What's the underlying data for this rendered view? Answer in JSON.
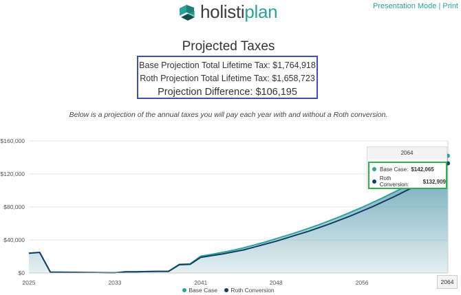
{
  "header": {
    "logo_part1": "holisti",
    "logo_part2": "plan",
    "presentation_mode": "Presentation Mode",
    "separator": "|",
    "print": "Print"
  },
  "summary": {
    "title": "Projected Taxes",
    "base_line": "Base Projection Total Lifetime Tax: $1,764,918",
    "roth_line": "Roth Projection Total Lifetime Tax: $1,658,723",
    "difference_line": "Projection Difference: $106,195",
    "description": "Below is a projection of the annual taxes you will pay each year with and without a Roth conversion."
  },
  "colors": {
    "base_case": "#2aa39b",
    "roth_conversion": "#123d66",
    "area_fill": "#4e97a8",
    "highlight_box": "#3f4fb0",
    "tooltip_box": "#2bb24c"
  },
  "tooltip": {
    "year": "2064",
    "base_label": "Base Case:",
    "base_value": "$142,065",
    "roth_label": "Roth Conversion:",
    "roth_value": "$132,909"
  },
  "x_badge": "2064",
  "chart_data": {
    "type": "area",
    "ylim": [
      0,
      160000
    ],
    "yticks": [
      "$0",
      "$40,000",
      "$80,000",
      "$120,000",
      "$160,000"
    ],
    "xtick_labels": [
      "2025",
      "2033",
      "2041",
      "2048",
      "2056"
    ],
    "x_range": [
      2025,
      2064
    ],
    "x": [
      2025,
      2026,
      2027,
      2028,
      2029,
      2030,
      2031,
      2032,
      2033,
      2034,
      2035,
      2036,
      2037,
      2038,
      2039,
      2040,
      2041,
      2042,
      2043,
      2044,
      2045,
      2046,
      2047,
      2048,
      2049,
      2050,
      2051,
      2052,
      2053,
      2054,
      2055,
      2056,
      2057,
      2058,
      2059,
      2060,
      2061,
      2062,
      2063,
      2064
    ],
    "series": [
      {
        "name": "Base Case",
        "values": [
          24000,
          25000,
          1000,
          900,
          800,
          600,
          500,
          300,
          200,
          1500,
          1500,
          1800,
          2000,
          2000,
          10500,
          11000,
          20500,
          22500,
          25000,
          27500,
          30500,
          34000,
          37500,
          41500,
          45500,
          49500,
          54000,
          58500,
          63500,
          68500,
          74000,
          79500,
          85500,
          91500,
          98000,
          104500,
          111000,
          118000,
          128000,
          142065
        ]
      },
      {
        "name": "Roth Conversion",
        "values": [
          24000,
          25000,
          1000,
          900,
          800,
          600,
          500,
          300,
          200,
          1500,
          1500,
          1800,
          2000,
          2000,
          10000,
          10500,
          19000,
          21000,
          23000,
          25500,
          28000,
          31500,
          35000,
          38500,
          42500,
          46500,
          50500,
          55000,
          59500,
          64500,
          69500,
          75000,
          80500,
          86500,
          92500,
          99000,
          105500,
          112000,
          120000,
          132909
        ]
      }
    ],
    "legend": [
      "Base Case",
      "Roth Conversion"
    ],
    "legend_position": "bottom-center",
    "grid": "horizontal"
  }
}
